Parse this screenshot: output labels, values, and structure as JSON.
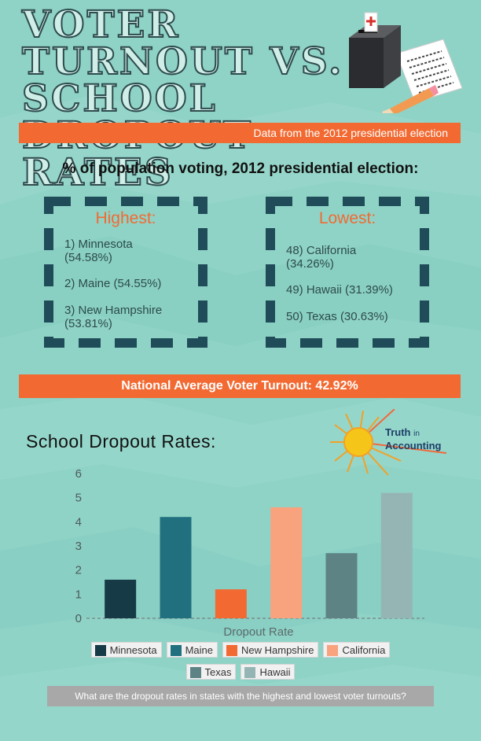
{
  "title": "Voter Turnout vs. School Dropout Rates",
  "source_band": "Data from the 2012 presidential election",
  "voting_heading": "% of population voting, 2012 presidential election:",
  "highest": {
    "label": "Highest:",
    "items": [
      {
        "rank": "1) Minnesota",
        "value": "(54.58%)"
      },
      {
        "rank": "2) Maine",
        "value": "(54.55%)"
      },
      {
        "rank": "3) New Hampshire",
        "value": "(53.81%)"
      }
    ]
  },
  "lowest": {
    "label": "Lowest:",
    "items": [
      {
        "rank": "48) California",
        "value": "(34.26%)"
      },
      {
        "rank": "49) Hawaii",
        "value": "(31.39%)"
      },
      {
        "rank": "50) Texas",
        "value": "(30.63%)"
      }
    ]
  },
  "national_band": "National Average Voter Turnout: 42.92%",
  "dropout_heading": "School Dropout Rates:",
  "logo": {
    "line1": "Truth",
    "line1_small": "in",
    "line2": "Accounting"
  },
  "question": "What are the dropout rates in states with the highest and lowest voter turnouts?",
  "colors": {
    "background": "#8fd3c6",
    "accent": "#f26a32",
    "box_border": "#1f4c58"
  },
  "icons": [
    "ballot-box-icon",
    "ballot-paper-icon",
    "pencil-icon",
    "sun-icon"
  ],
  "chart_data": {
    "type": "bar",
    "title": "",
    "xlabel": "Dropout Rate",
    "ylabel": "",
    "ylim": [
      0,
      6
    ],
    "yticks": [
      0,
      1,
      2,
      3,
      4,
      5,
      6
    ],
    "grid": false,
    "legend_position": "bottom",
    "categories": [
      "Minnesota",
      "Maine",
      "New Hampshire",
      "California",
      "Texas",
      "Hawaii"
    ],
    "values": [
      1.6,
      4.2,
      1.2,
      4.6,
      2.7,
      5.2
    ],
    "series_colors": [
      "#163b47",
      "#21707f",
      "#f26a32",
      "#f9a27e",
      "#5e8385",
      "#95b5b5"
    ]
  }
}
